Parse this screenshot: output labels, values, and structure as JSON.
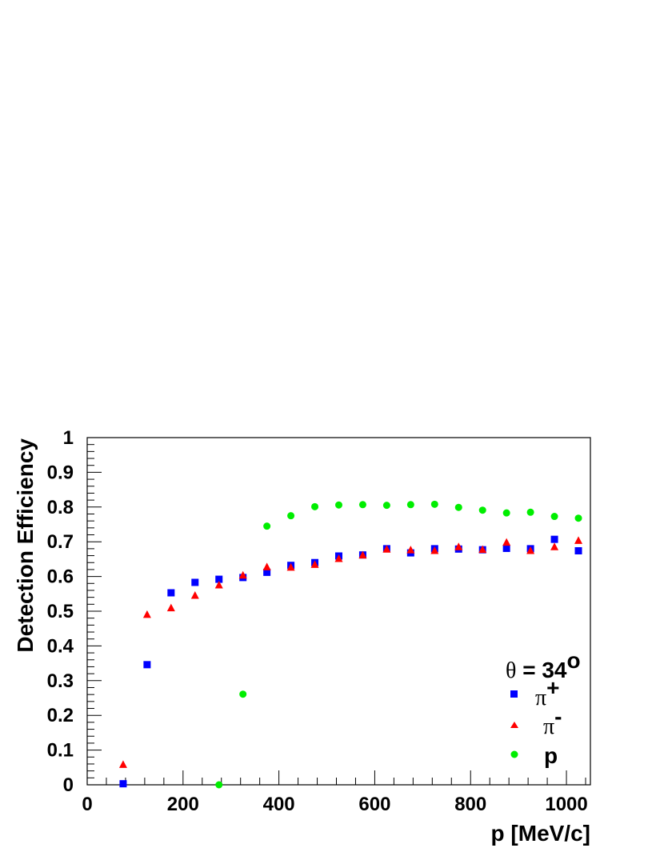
{
  "chart_data": {
    "type": "scatter",
    "xlabel": "p [MeV/c]",
    "ylabel": "Detection Efficiency",
    "xlim": [
      0,
      1050
    ],
    "ylim": [
      0,
      1
    ],
    "xticks": [
      "0",
      "200",
      "400",
      "600",
      "800",
      "1000"
    ],
    "yticks": [
      "0",
      "0.1",
      "0.2",
      "0.3",
      "0.4",
      "0.5",
      "0.6",
      "0.7",
      "0.8",
      "0.9",
      "1"
    ],
    "annotation": {
      "symbol": "θ",
      "text": " = 34",
      "superscript": "o"
    },
    "legend_position": "bottom-right",
    "series": [
      {
        "name": "π",
        "name_superscript": "+",
        "marker": "square",
        "color": "#0000ff",
        "x": [
          75,
          125,
          175,
          225,
          275,
          325,
          375,
          425,
          475,
          525,
          575,
          625,
          675,
          725,
          775,
          825,
          875,
          925,
          975,
          1025
        ],
        "y": [
          0.003,
          0.346,
          0.553,
          0.583,
          0.592,
          0.597,
          0.612,
          0.632,
          0.64,
          0.659,
          0.662,
          0.68,
          0.668,
          0.68,
          0.679,
          0.677,
          0.681,
          0.68,
          0.707,
          0.674
        ]
      },
      {
        "name": "π",
        "name_superscript": "-",
        "marker": "triangle",
        "color": "#ff0000",
        "x": [
          75,
          125,
          175,
          225,
          275,
          325,
          375,
          425,
          475,
          525,
          575,
          625,
          675,
          725,
          775,
          825,
          875,
          925,
          975,
          1025
        ],
        "y": [
          0.058,
          0.49,
          0.509,
          0.545,
          0.575,
          0.603,
          0.627,
          0.626,
          0.634,
          0.651,
          0.661,
          0.678,
          0.676,
          0.674,
          0.685,
          0.677,
          0.698,
          0.674,
          0.685,
          0.703
        ]
      },
      {
        "name": "p",
        "name_superscript": "",
        "marker": "circle",
        "color": "#00ee00",
        "x": [
          275,
          325,
          375,
          425,
          475,
          525,
          575,
          625,
          675,
          725,
          775,
          825,
          875,
          925,
          975,
          1025
        ],
        "y": [
          0.0,
          0.261,
          0.745,
          0.775,
          0.801,
          0.806,
          0.807,
          0.805,
          0.807,
          0.808,
          0.799,
          0.791,
          0.783,
          0.785,
          0.773,
          0.768
        ]
      }
    ]
  }
}
